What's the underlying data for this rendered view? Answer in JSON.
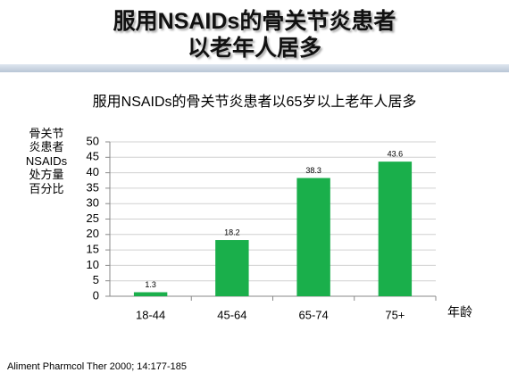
{
  "slide": {
    "title_lines": [
      "服用NSAIDs的骨关节炎患者",
      "以老年人居多"
    ],
    "source": "Aliment Pharmcol Ther 2000; 14:177-185"
  },
  "chart_data": {
    "type": "bar",
    "title": "服用NSAIDs的骨关节炎患者以65岁以上老年人居多",
    "y_label": "骨关节炎患者NSAIDs处方量百分比",
    "x_label": "年龄",
    "categories": [
      "18-44",
      "45-64",
      "65-74",
      "75+"
    ],
    "values": [
      1.3,
      18.2,
      38.3,
      43.6
    ],
    "color": "#1aaf4b",
    "ylim": [
      0,
      50
    ],
    "yticks": [
      0,
      5,
      10,
      15,
      20,
      25,
      30,
      35,
      40,
      45,
      50
    ],
    "grid": true
  }
}
